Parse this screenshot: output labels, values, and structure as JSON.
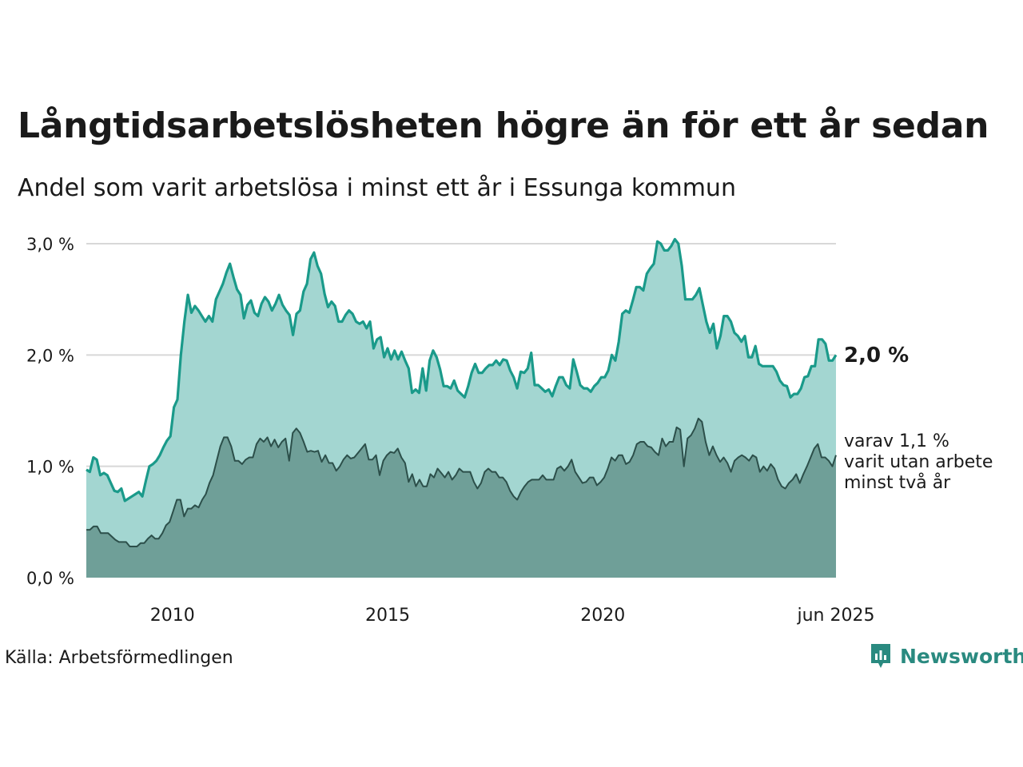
{
  "title": "Långtidsarbetslösheten högre än för ett år sedan",
  "subtitle": "Andel som varit arbetslösa i minst ett år i Essunga kommun",
  "source": "Källa: Arbetsförmedlingen",
  "logo": "Newsworthy",
  "annotations": {
    "last_value": "2,0 %",
    "sub_line1": "varav 1,1 %",
    "sub_line2": "varit utan arbete",
    "sub_line3": "minst två år"
  },
  "colors": {
    "series1_line": "#1a9a8a",
    "series1_fill": "#a3d6d1",
    "series2_line": "#2c4f4a",
    "series2_fill": "#6f9f98",
    "grid": "#d8d8d8",
    "logo": "#2a8a80"
  },
  "chart_data": {
    "type": "area",
    "x_start": "2008-01",
    "x_end": "2025-06",
    "xtick_labels": [
      {
        "x": "2010-01",
        "label": "2010"
      },
      {
        "x": "2015-01",
        "label": "2015"
      },
      {
        "x": "2020-01",
        "label": "2020"
      },
      {
        "x": "2025-06",
        "label": "jun 2025"
      }
    ],
    "ytick_labels": [
      "0,0 %",
      "1,0 %",
      "2,0 %",
      "3,0 %"
    ],
    "yticks": [
      0,
      1,
      2,
      3
    ],
    "ylim": [
      0,
      3.1
    ],
    "grid": true,
    "series": [
      {
        "name": "",
        "values": [
          0.97,
          0.95,
          1.08,
          1.06,
          0.92,
          0.94,
          0.92,
          0.85,
          0.78,
          0.77,
          0.8,
          0.69,
          0.71,
          0.73,
          0.75,
          0.77,
          0.73,
          0.87,
          1.0,
          1.02,
          1.05,
          1.1,
          1.17,
          1.23,
          1.27,
          1.53,
          1.6,
          2.0,
          2.3,
          2.54,
          2.38,
          2.44,
          2.4,
          2.35,
          2.3,
          2.35,
          2.3,
          2.5,
          2.57,
          2.64,
          2.74,
          2.82,
          2.7,
          2.59,
          2.54,
          2.33,
          2.45,
          2.49,
          2.38,
          2.35,
          2.46,
          2.52,
          2.48,
          2.4,
          2.46,
          2.54,
          2.45,
          2.4,
          2.36,
          2.18,
          2.37,
          2.4,
          2.57,
          2.64,
          2.86,
          2.92,
          2.8,
          2.73,
          2.55,
          2.43,
          2.48,
          2.44,
          2.3,
          2.3,
          2.36,
          2.4,
          2.37,
          2.3,
          2.28,
          2.3,
          2.24,
          2.3,
          2.06,
          2.14,
          2.16,
          1.98,
          2.06,
          1.96,
          2.04,
          1.96,
          2.03,
          1.95,
          1.88,
          1.66,
          1.69,
          1.66,
          1.88,
          1.68,
          1.95,
          2.04,
          1.98,
          1.87,
          1.72,
          1.72,
          1.7,
          1.77,
          1.68,
          1.65,
          1.62,
          1.72,
          1.84,
          1.92,
          1.84,
          1.84,
          1.88,
          1.91,
          1.91,
          1.95,
          1.91,
          1.96,
          1.95,
          1.86,
          1.8,
          1.7,
          1.85,
          1.84,
          1.88,
          2.02,
          1.73,
          1.73,
          1.7,
          1.67,
          1.69,
          1.63,
          1.72,
          1.8,
          1.8,
          1.73,
          1.7,
          1.96,
          1.85,
          1.73,
          1.7,
          1.7,
          1.67,
          1.72,
          1.75,
          1.8,
          1.8,
          1.86,
          2.0,
          1.95,
          2.12,
          2.37,
          2.4,
          2.38,
          2.49,
          2.61,
          2.61,
          2.58,
          2.73,
          2.78,
          2.82,
          3.02,
          3.0,
          2.94,
          2.94,
          2.98,
          3.04,
          3.0,
          2.8,
          2.5,
          2.5,
          2.5,
          2.54,
          2.6,
          2.45,
          2.3,
          2.2,
          2.28,
          2.06,
          2.17,
          2.35,
          2.35,
          2.3,
          2.2,
          2.17,
          2.12,
          2.17,
          1.98,
          1.98,
          2.08,
          1.92,
          1.9,
          1.9,
          1.9,
          1.9,
          1.85,
          1.77,
          1.73,
          1.72,
          1.62,
          1.65,
          1.65,
          1.7,
          1.8,
          1.81,
          1.9,
          1.9,
          2.14,
          2.14,
          2.1,
          1.95,
          1.95,
          2.0
        ]
      },
      {
        "name": "",
        "values": [
          0.43,
          0.43,
          0.46,
          0.46,
          0.4,
          0.4,
          0.4,
          0.37,
          0.34,
          0.32,
          0.32,
          0.32,
          0.28,
          0.28,
          0.28,
          0.31,
          0.31,
          0.35,
          0.38,
          0.35,
          0.35,
          0.4,
          0.47,
          0.5,
          0.6,
          0.7,
          0.7,
          0.55,
          0.62,
          0.62,
          0.65,
          0.63,
          0.7,
          0.75,
          0.85,
          0.92,
          1.05,
          1.18,
          1.26,
          1.26,
          1.18,
          1.05,
          1.05,
          1.02,
          1.06,
          1.08,
          1.08,
          1.2,
          1.25,
          1.22,
          1.26,
          1.18,
          1.24,
          1.17,
          1.22,
          1.25,
          1.05,
          1.3,
          1.34,
          1.3,
          1.22,
          1.13,
          1.14,
          1.13,
          1.14,
          1.04,
          1.1,
          1.03,
          1.03,
          0.96,
          1.0,
          1.06,
          1.1,
          1.07,
          1.08,
          1.12,
          1.16,
          1.2,
          1.06,
          1.06,
          1.1,
          0.92,
          1.05,
          1.1,
          1.13,
          1.12,
          1.16,
          1.08,
          1.03,
          0.86,
          0.93,
          0.82,
          0.88,
          0.82,
          0.82,
          0.93,
          0.9,
          0.98,
          0.94,
          0.9,
          0.95,
          0.88,
          0.92,
          0.98,
          0.95,
          0.95,
          0.95,
          0.86,
          0.8,
          0.85,
          0.95,
          0.98,
          0.95,
          0.95,
          0.9,
          0.9,
          0.86,
          0.78,
          0.73,
          0.7,
          0.77,
          0.82,
          0.86,
          0.88,
          0.88,
          0.88,
          0.92,
          0.88,
          0.88,
          0.88,
          0.98,
          1.0,
          0.96,
          1.0,
          1.06,
          0.95,
          0.9,
          0.85,
          0.86,
          0.9,
          0.9,
          0.83,
          0.86,
          0.9,
          0.98,
          1.08,
          1.05,
          1.1,
          1.1,
          1.02,
          1.04,
          1.1,
          1.2,
          1.22,
          1.22,
          1.18,
          1.17,
          1.13,
          1.1,
          1.25,
          1.18,
          1.22,
          1.22,
          1.35,
          1.33,
          1.0,
          1.25,
          1.28,
          1.34,
          1.43,
          1.4,
          1.22,
          1.1,
          1.18,
          1.1,
          1.04,
          1.08,
          1.03,
          0.95,
          1.05,
          1.08,
          1.1,
          1.08,
          1.05,
          1.1,
          1.08,
          0.95,
          1.0,
          0.96,
          1.02,
          0.98,
          0.88,
          0.82,
          0.8,
          0.85,
          0.88,
          0.93,
          0.85,
          0.93,
          1.0,
          1.08,
          1.16,
          1.2,
          1.08,
          1.08,
          1.05,
          1.0,
          1.1
        ]
      }
    ]
  }
}
